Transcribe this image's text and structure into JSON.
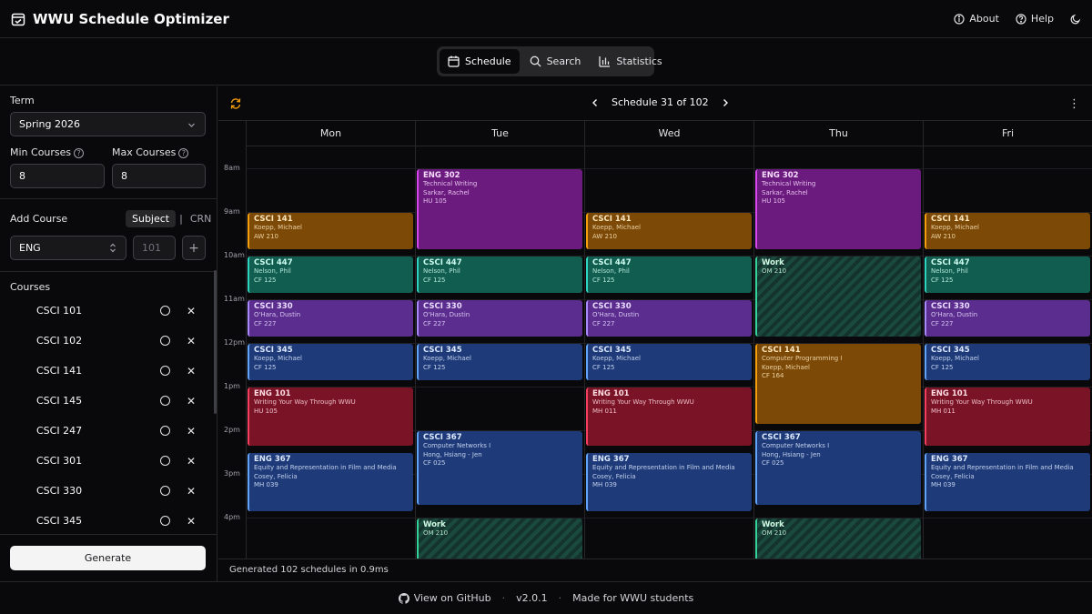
{
  "app": {
    "title": "WWU Schedule Optimizer"
  },
  "header": {
    "about": "About",
    "help": "Help"
  },
  "tabs": [
    {
      "label": "Schedule",
      "icon": "calendar-icon",
      "active": true
    },
    {
      "label": "Search",
      "icon": "search-icon",
      "active": false
    },
    {
      "label": "Statistics",
      "icon": "bar-chart-icon",
      "active": false
    }
  ],
  "sidebar": {
    "term_label": "Term",
    "term_value": "Spring 2026",
    "min_label": "Min Courses",
    "min_value": "8",
    "max_label": "Max Courses",
    "max_value": "8",
    "add_course_label": "Add Course",
    "mode_subject": "Subject",
    "mode_sep": "|",
    "mode_crn": "CRN",
    "subject_value": "ENG",
    "number_placeholder": "101",
    "add_symbol": "+",
    "courses_label": "Courses",
    "courses": [
      "CSCI 101",
      "CSCI 102",
      "CSCI 141",
      "CSCI 145",
      "CSCI 247",
      "CSCI 301",
      "CSCI 330",
      "CSCI 345"
    ],
    "generate_label": "Generate"
  },
  "schedule": {
    "nav_label": "Schedule 31 of 102",
    "days": [
      "Mon",
      "Tue",
      "Wed",
      "Thu",
      "Fri"
    ],
    "hours": [
      "8am",
      "9am",
      "10am",
      "11am",
      "12pm",
      "1pm",
      "2pm",
      "3pm",
      "4pm"
    ],
    "events": [
      {
        "day": 0,
        "start": 9.0,
        "end": 9.85,
        "color": "orange",
        "code": "CSCI 141",
        "lines": [
          "Koepp, Michael",
          "AW 210"
        ]
      },
      {
        "day": 0,
        "start": 10.0,
        "end": 10.85,
        "color": "teal",
        "code": "CSCI 447",
        "lines": [
          "Nelson, Phil",
          "CF 125"
        ]
      },
      {
        "day": 0,
        "start": 11.0,
        "end": 11.85,
        "color": "purple",
        "code": "CSCI 330",
        "lines": [
          "O'Hara, Dustin",
          "CF 227"
        ]
      },
      {
        "day": 0,
        "start": 12.0,
        "end": 12.85,
        "color": "blue",
        "code": "CSCI 345",
        "lines": [
          "Koepp, Michael",
          "CF 125"
        ]
      },
      {
        "day": 0,
        "start": 13.0,
        "end": 14.35,
        "color": "red",
        "code": "ENG 101",
        "lines": [
          "Writing Your Way Through WWU",
          "HU 105"
        ]
      },
      {
        "day": 0,
        "start": 14.5,
        "end": 15.85,
        "color": "blue",
        "code": "ENG 367",
        "lines": [
          "Equity and Representation in Film and Media",
          "Cosey, Felicia",
          "MH 039"
        ]
      },
      {
        "day": 1,
        "start": 8.0,
        "end": 9.85,
        "color": "magenta",
        "code": "ENG 302",
        "lines": [
          "Technical Writing",
          "Sarkar, Rachel",
          "HU 105"
        ]
      },
      {
        "day": 1,
        "start": 10.0,
        "end": 10.85,
        "color": "teal",
        "code": "CSCI 447",
        "lines": [
          "Nelson, Phil",
          "CF 125"
        ]
      },
      {
        "day": 1,
        "start": 11.0,
        "end": 11.85,
        "color": "purple",
        "code": "CSCI 330",
        "lines": [
          "O'Hara, Dustin",
          "CF 227"
        ]
      },
      {
        "day": 1,
        "start": 12.0,
        "end": 12.85,
        "color": "blue",
        "code": "CSCI 345",
        "lines": [
          "Koepp, Michael",
          "CF 125"
        ]
      },
      {
        "day": 1,
        "start": 14.0,
        "end": 15.7,
        "color": "blue",
        "code": "CSCI 367",
        "lines": [
          "Computer Networks I",
          "Hong, Hsiang - Jen",
          "CF 025"
        ]
      },
      {
        "day": 1,
        "start": 16.0,
        "end": 17.0,
        "color": "work",
        "code": "Work",
        "lines": [
          "OM 210"
        ]
      },
      {
        "day": 2,
        "start": 9.0,
        "end": 9.85,
        "color": "orange",
        "code": "CSCI 141",
        "lines": [
          "Koepp, Michael",
          "AW 210"
        ]
      },
      {
        "day": 2,
        "start": 10.0,
        "end": 10.85,
        "color": "teal",
        "code": "CSCI 447",
        "lines": [
          "Nelson, Phil",
          "CF 125"
        ]
      },
      {
        "day": 2,
        "start": 11.0,
        "end": 11.85,
        "color": "purple",
        "code": "CSCI 330",
        "lines": [
          "O'Hara, Dustin",
          "CF 227"
        ]
      },
      {
        "day": 2,
        "start": 12.0,
        "end": 12.85,
        "color": "blue",
        "code": "CSCI 345",
        "lines": [
          "Koepp, Michael",
          "CF 125"
        ]
      },
      {
        "day": 2,
        "start": 13.0,
        "end": 14.35,
        "color": "red",
        "code": "ENG 101",
        "lines": [
          "Writing Your Way Through WWU",
          "MH 011"
        ]
      },
      {
        "day": 2,
        "start": 14.5,
        "end": 15.85,
        "color": "blue",
        "code": "ENG 367",
        "lines": [
          "Equity and Representation in Film and Media",
          "Cosey, Felicia",
          "MH 039"
        ]
      },
      {
        "day": 3,
        "start": 8.0,
        "end": 9.85,
        "color": "magenta",
        "code": "ENG 302",
        "lines": [
          "Technical Writing",
          "Sarkar, Rachel",
          "HU 105"
        ]
      },
      {
        "day": 3,
        "start": 10.0,
        "end": 11.85,
        "color": "work",
        "code": "Work",
        "lines": [
          "OM 210"
        ]
      },
      {
        "day": 3,
        "start": 12.0,
        "end": 13.85,
        "color": "orange",
        "code": "CSCI 141",
        "lines": [
          "Computer Programming I",
          "Koepp, Michael",
          "CF 164"
        ]
      },
      {
        "day": 3,
        "start": 14.0,
        "end": 15.7,
        "color": "blue",
        "code": "CSCI 367",
        "lines": [
          "Computer Networks I",
          "Hong, Hsiang - Jen",
          "CF 025"
        ]
      },
      {
        "day": 3,
        "start": 16.0,
        "end": 17.0,
        "color": "work",
        "code": "Work",
        "lines": [
          "OM 210"
        ]
      },
      {
        "day": 4,
        "start": 9.0,
        "end": 9.85,
        "color": "orange",
        "code": "CSCI 141",
        "lines": [
          "Koepp, Michael",
          "AW 210"
        ]
      },
      {
        "day": 4,
        "start": 10.0,
        "end": 10.85,
        "color": "teal",
        "code": "CSCI 447",
        "lines": [
          "Nelson, Phil",
          "CF 125"
        ]
      },
      {
        "day": 4,
        "start": 11.0,
        "end": 11.85,
        "color": "purple",
        "code": "CSCI 330",
        "lines": [
          "O'Hara, Dustin",
          "CF 227"
        ]
      },
      {
        "day": 4,
        "start": 12.0,
        "end": 12.85,
        "color": "blue",
        "code": "CSCI 345",
        "lines": [
          "Koepp, Michael",
          "CF 125"
        ]
      },
      {
        "day": 4,
        "start": 13.0,
        "end": 14.35,
        "color": "red",
        "code": "ENG 101",
        "lines": [
          "Writing Your Way Through WWU",
          "MH 011"
        ]
      },
      {
        "day": 4,
        "start": 14.5,
        "end": 15.85,
        "color": "blue",
        "code": "ENG 367",
        "lines": [
          "Equity and Representation in Film and Media",
          "Cosey, Felicia",
          "MH 039"
        ]
      }
    ]
  },
  "status": "Generated 102 schedules in 0.9ms",
  "footer": {
    "github": "View on GitHub",
    "sep": "·",
    "version": "v2.0.1",
    "made": "Made for WWU students"
  }
}
